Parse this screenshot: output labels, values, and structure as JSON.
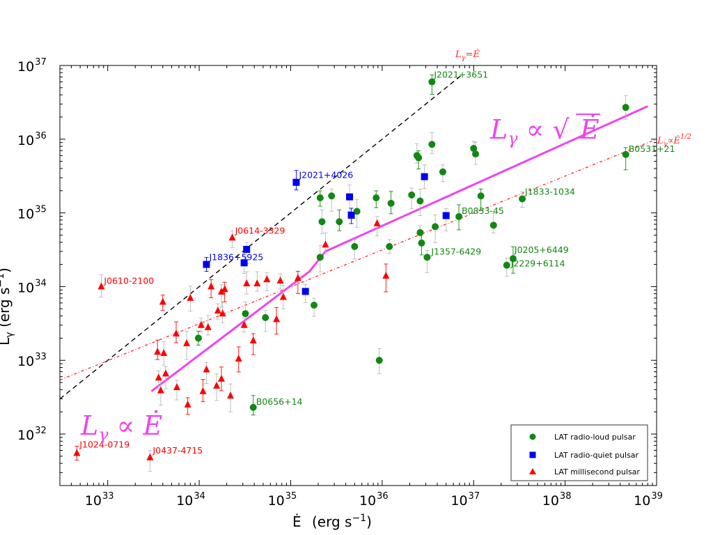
{
  "chart_data": {
    "type": "scatter",
    "xlabel": "Ė  (erg s⁻¹)",
    "ylabel": "L_γ (erg s⁻¹)",
    "xscale": "log",
    "yscale": "log",
    "xlim": [
      3e+32,
      1e+39
    ],
    "ylim": [
      2e+31,
      1e+37
    ],
    "x_ticks": [
      1e+33,
      1e+34,
      1e+35,
      1e+36,
      1e+37,
      1e+38,
      1e+39
    ],
    "y_ticks": [
      1e+32,
      1e+33,
      1e+34,
      1e+35,
      1e+36,
      1e+37
    ],
    "x_tick_labels": [
      [
        "10",
        "33"
      ],
      [
        "10",
        "34"
      ],
      [
        "10",
        "35"
      ],
      [
        "10",
        "36"
      ],
      [
        "10",
        "37"
      ],
      [
        "10",
        "38"
      ],
      [
        "10",
        "39"
      ]
    ],
    "y_tick_labels": [
      [
        "10",
        "32"
      ],
      [
        "10",
        "33"
      ],
      [
        "10",
        "34"
      ],
      [
        "10",
        "35"
      ],
      [
        "10",
        "36"
      ],
      [
        "10",
        "37"
      ]
    ],
    "colors": {
      "radio_loud": "#118811",
      "radio_quiet": "#0000ee",
      "millisecond": "#ff0000",
      "model": "#ee44ee",
      "error_bar": "#b8b8b8"
    },
    "legend": {
      "position": "bottom-right",
      "entries": [
        {
          "label": "LAT radio-loud pulsar",
          "series": "radio_loud"
        },
        {
          "label": "LAT radio-quiet pulsar",
          "series": "radio_quiet"
        },
        {
          "label": "LAT millisecond pulsar",
          "series": "millisecond"
        }
      ]
    },
    "series": [
      {
        "name": "LAT radio-loud pulsar",
        "key": "radio_loud",
        "marker": "circle",
        "points": [
          {
            "x": 9.8e+33,
            "y": 2e+33
          },
          {
            "x": 3.2e+34,
            "y": 4.3e+33
          },
          {
            "x": 5.3e+34,
            "y": 3.8e+33
          },
          {
            "x": 3.9e+34,
            "y": 2.3e+32,
            "label": "B0656+14"
          },
          {
            "x": 1.8e+35,
            "y": 5.6e+33
          },
          {
            "x": 2.1e+35,
            "y": 2.5e+34
          },
          {
            "x": 2.1e+35,
            "y": 1.6e+35
          },
          {
            "x": 2.2e+35,
            "y": 7.6e+34
          },
          {
            "x": 2.8e+35,
            "y": 1.7e+35
          },
          {
            "x": 3.4e+35,
            "y": 7.6e+34
          },
          {
            "x": 5e+35,
            "y": 3.5e+34
          },
          {
            "x": 5.3e+35,
            "y": 1.05e+35
          },
          {
            "x": 8.6e+35,
            "y": 1.6e+35
          },
          {
            "x": 9.3e+35,
            "y": 1e+33
          },
          {
            "x": 1.2e+36,
            "y": 3.5e+34
          },
          {
            "x": 1.25e+36,
            "y": 1.35e+35
          },
          {
            "x": 2.1e+36,
            "y": 1.75e+35
          },
          {
            "x": 2.4e+36,
            "y": 6e+35
          },
          {
            "x": 2.5e+36,
            "y": 5.6e+35
          },
          {
            "x": 2.6e+36,
            "y": 1.45e+35
          },
          {
            "x": 2.6e+36,
            "y": 5.4e+34
          },
          {
            "x": 2.7e+36,
            "y": 3.9e+34
          },
          {
            "x": 3.1e+36,
            "y": 2.5e+34,
            "label": "J1357-6429"
          },
          {
            "x": 3.5e+36,
            "y": 8.5e+35
          },
          {
            "x": 3.5e+36,
            "y": 6e+36,
            "label": "J2021+3651"
          },
          {
            "x": 3.8e+36,
            "y": 6.5e+34
          },
          {
            "x": 4.6e+36,
            "y": 3.6e+35
          },
          {
            "x": 6.9e+36,
            "y": 8.9e+34,
            "label": "B0833-45"
          },
          {
            "x": 1e+37,
            "y": 7.5e+35
          },
          {
            "x": 1.05e+37,
            "y": 6.3e+35
          },
          {
            "x": 1.2e+37,
            "y": 1.7e+35
          },
          {
            "x": 1.65e+37,
            "y": 6.8e+34
          },
          {
            "x": 2.3e+37,
            "y": 1.95e+34,
            "label": "J2229+6114"
          },
          {
            "x": 2.7e+37,
            "y": 2.4e+34,
            "label": "J0205+6449"
          },
          {
            "x": 3.4e+37,
            "y": 1.55e+35,
            "label": "J1833-1034"
          },
          {
            "x": 4.6e+38,
            "y": 2.7e+36
          },
          {
            "x": 4.6e+38,
            "y": 6.2e+35,
            "label": "B0531+21"
          }
        ]
      },
      {
        "name": "LAT radio-quiet pulsar",
        "key": "radio_quiet",
        "marker": "square",
        "points": [
          {
            "x": 1.2e+34,
            "y": 2e+34,
            "label": "J1836+5925"
          },
          {
            "x": 3.1e+34,
            "y": 2.1e+34
          },
          {
            "x": 3.3e+34,
            "y": 3.2e+34
          },
          {
            "x": 1.15e+35,
            "y": 2.6e+35,
            "label": "J2021+4026"
          },
          {
            "x": 1.45e+35,
            "y": 8.6e+33
          },
          {
            "x": 4.4e+35,
            "y": 1.65e+35
          },
          {
            "x": 4.6e+35,
            "y": 9.3e+34
          },
          {
            "x": 2.9e+36,
            "y": 3.1e+35
          },
          {
            "x": 5e+36,
            "y": 9.2e+34
          }
        ]
      },
      {
        "name": "LAT millisecond pulsar",
        "key": "millisecond",
        "marker": "triangle",
        "points": [
          {
            "x": 4.6e+32,
            "y": 5.5e+31,
            "label": "J1024-0719"
          },
          {
            "x": 8.5e+32,
            "y": 1e+34,
            "label": "J0610-2100"
          },
          {
            "x": 2.9e+33,
            "y": 4.8e+31,
            "label": "J0437-4715"
          },
          {
            "x": 3.5e+33,
            "y": 1.3e+33
          },
          {
            "x": 3.6e+33,
            "y": 5.8e+32
          },
          {
            "x": 3.8e+33,
            "y": 3.9e+32
          },
          {
            "x": 4e+33,
            "y": 6.2e+33
          },
          {
            "x": 4.1e+33,
            "y": 1.25e+33
          },
          {
            "x": 4.3e+33,
            "y": 6.6e+32
          },
          {
            "x": 5.6e+33,
            "y": 2.3e+33
          },
          {
            "x": 5.7e+33,
            "y": 4.3e+32
          },
          {
            "x": 7.3e+33,
            "y": 1.7e+33
          },
          {
            "x": 7.5e+33,
            "y": 2.5e+32
          },
          {
            "x": 8e+33,
            "y": 7e+33
          },
          {
            "x": 1.05e+34,
            "y": 3e+33
          },
          {
            "x": 1.1e+34,
            "y": 3.8e+32
          },
          {
            "x": 1.2e+34,
            "y": 7.5e+32
          },
          {
            "x": 1.25e+34,
            "y": 2.8e+33
          },
          {
            "x": 1.35e+34,
            "y": 1e+34
          },
          {
            "x": 1.55e+34,
            "y": 4.5e+32
          },
          {
            "x": 1.6e+34,
            "y": 4.7e+33
          },
          {
            "x": 1.75e+34,
            "y": 5.6e+32
          },
          {
            "x": 1.75e+34,
            "y": 8.5e+33
          },
          {
            "x": 1.8e+34,
            "y": 4.3e+33
          },
          {
            "x": 1.9e+34,
            "y": 9.2e+33
          },
          {
            "x": 2.2e+34,
            "y": 3.3e+32
          },
          {
            "x": 2.3e+34,
            "y": 4.6e+34,
            "label": "J0614-3329"
          },
          {
            "x": 2.7e+34,
            "y": 1.05e+33
          },
          {
            "x": 3.1e+34,
            "y": 3e+33
          },
          {
            "x": 3.3e+34,
            "y": 1.1e+34
          },
          {
            "x": 3.9e+34,
            "y": 1.85e+33
          },
          {
            "x": 4.3e+34,
            "y": 1.1e+34
          },
          {
            "x": 5.5e+34,
            "y": 1.25e+34
          },
          {
            "x": 7e+34,
            "y": 3.6e+33
          },
          {
            "x": 7.7e+34,
            "y": 1.2e+34
          },
          {
            "x": 8.3e+34,
            "y": 7.2e+33
          },
          {
            "x": 1.2e+35,
            "y": 1.3e+34
          },
          {
            "x": 2.4e+35,
            "y": 3.7e+34
          },
          {
            "x": 8.8e+35,
            "y": 7.2e+34
          },
          {
            "x": 1.1e+36,
            "y": 1.4e+34
          }
        ]
      }
    ],
    "lines": [
      {
        "name": "L_γ = Ė",
        "style": "dashed",
        "color": "#000000",
        "points": [
          [
            3e+32,
            3e+32
          ],
          [
            7.2e+36,
            7.2e+36
          ]
        ]
      },
      {
        "name": "L_γ ∝ Ė^1/2",
        "style": "dash-dot",
        "color": "#ff2222",
        "points": [
          [
            3e+32,
            5.4e+32
          ],
          [
            1e+39,
            1e+36
          ]
        ]
      },
      {
        "name": "model",
        "style": "solid",
        "color": "#ee44ee",
        "points": [
          [
            3e+33,
            3.8e+32
          ],
          [
            1.6e+35,
            1.6e+34
          ],
          [
            2.4e+35,
            3e+34
          ],
          [
            8e+38,
            2.8e+36
          ]
        ]
      }
    ],
    "annotations": {
      "one_to_one": "L_γ = Ė",
      "sqrt_line": "L_γ ∝ Ė^1/2",
      "model_high": "L_γ ∝ √Ė",
      "model_low": "L_γ ∝ Ė"
    }
  }
}
